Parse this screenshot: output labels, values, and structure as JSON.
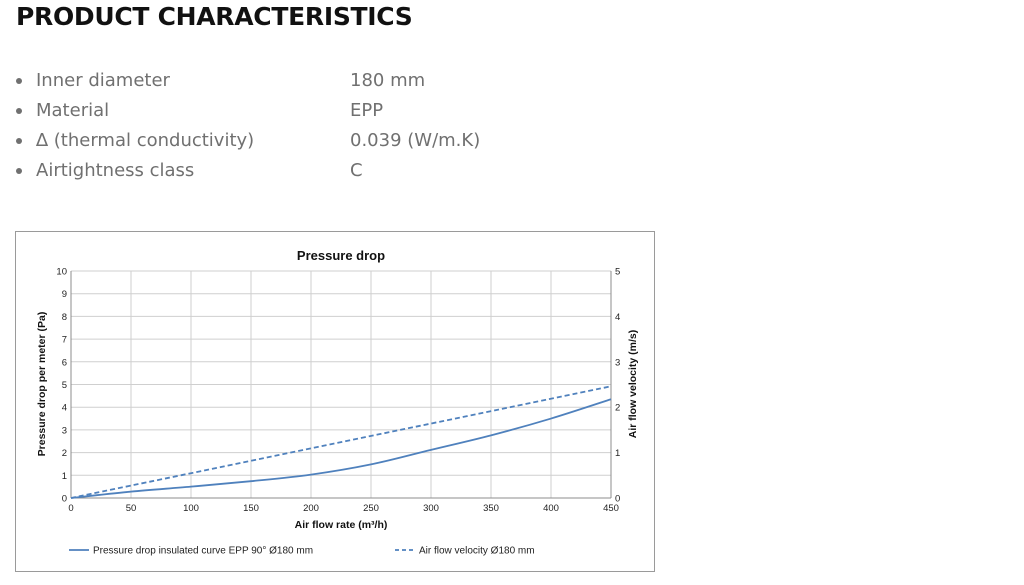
{
  "page": {
    "title": "PRODUCT CHARACTERISTICS"
  },
  "specs": [
    {
      "label": "Inner diameter",
      "value": "180 mm"
    },
    {
      "label": "Material",
      "value": "EPP"
    },
    {
      "label": "∆ (thermal conductivity)",
      "value": "0.039 (W/m.K)"
    },
    {
      "label": "Airtightness class",
      "value": "C"
    }
  ],
  "chart_data": {
    "type": "line",
    "title": "Pressure drop",
    "xlabel": "Air flow rate (m³/h)",
    "ylabel": "Pressure drop per meter (Pa)",
    "y2label": "Air flow velocity (m/s)",
    "xlim": [
      0,
      450
    ],
    "ylim": [
      0,
      10
    ],
    "y2lim": [
      0,
      5
    ],
    "x_ticks": [
      "0",
      "50",
      "100",
      "150",
      "200",
      "250",
      "300",
      "350",
      "400",
      "450"
    ],
    "y_ticks": [
      "0",
      "1",
      "2",
      "3",
      "4",
      "5",
      "6",
      "7",
      "8",
      "9",
      "10"
    ],
    "y2_ticks": [
      "0",
      "1",
      "2",
      "3",
      "4",
      "5"
    ],
    "grid": true,
    "legend_position": "bottom",
    "series": [
      {
        "name": "Pressure drop insulated curve EPP 90° Ø180 mm",
        "axis": "left",
        "style": "solid",
        "color": "#4f81bd",
        "x": [
          0,
          50,
          100,
          150,
          200,
          250,
          300,
          350,
          400,
          450
        ],
        "y": [
          0,
          0.28,
          0.5,
          0.74,
          1.03,
          1.48,
          2.12,
          2.76,
          3.5,
          4.35
        ]
      },
      {
        "name": "Air flow velocity Ø180 mm",
        "axis": "right",
        "style": "dashed",
        "color": "#4f81bd",
        "x": [
          0,
          450
        ],
        "y": [
          0,
          2.46
        ]
      }
    ]
  }
}
